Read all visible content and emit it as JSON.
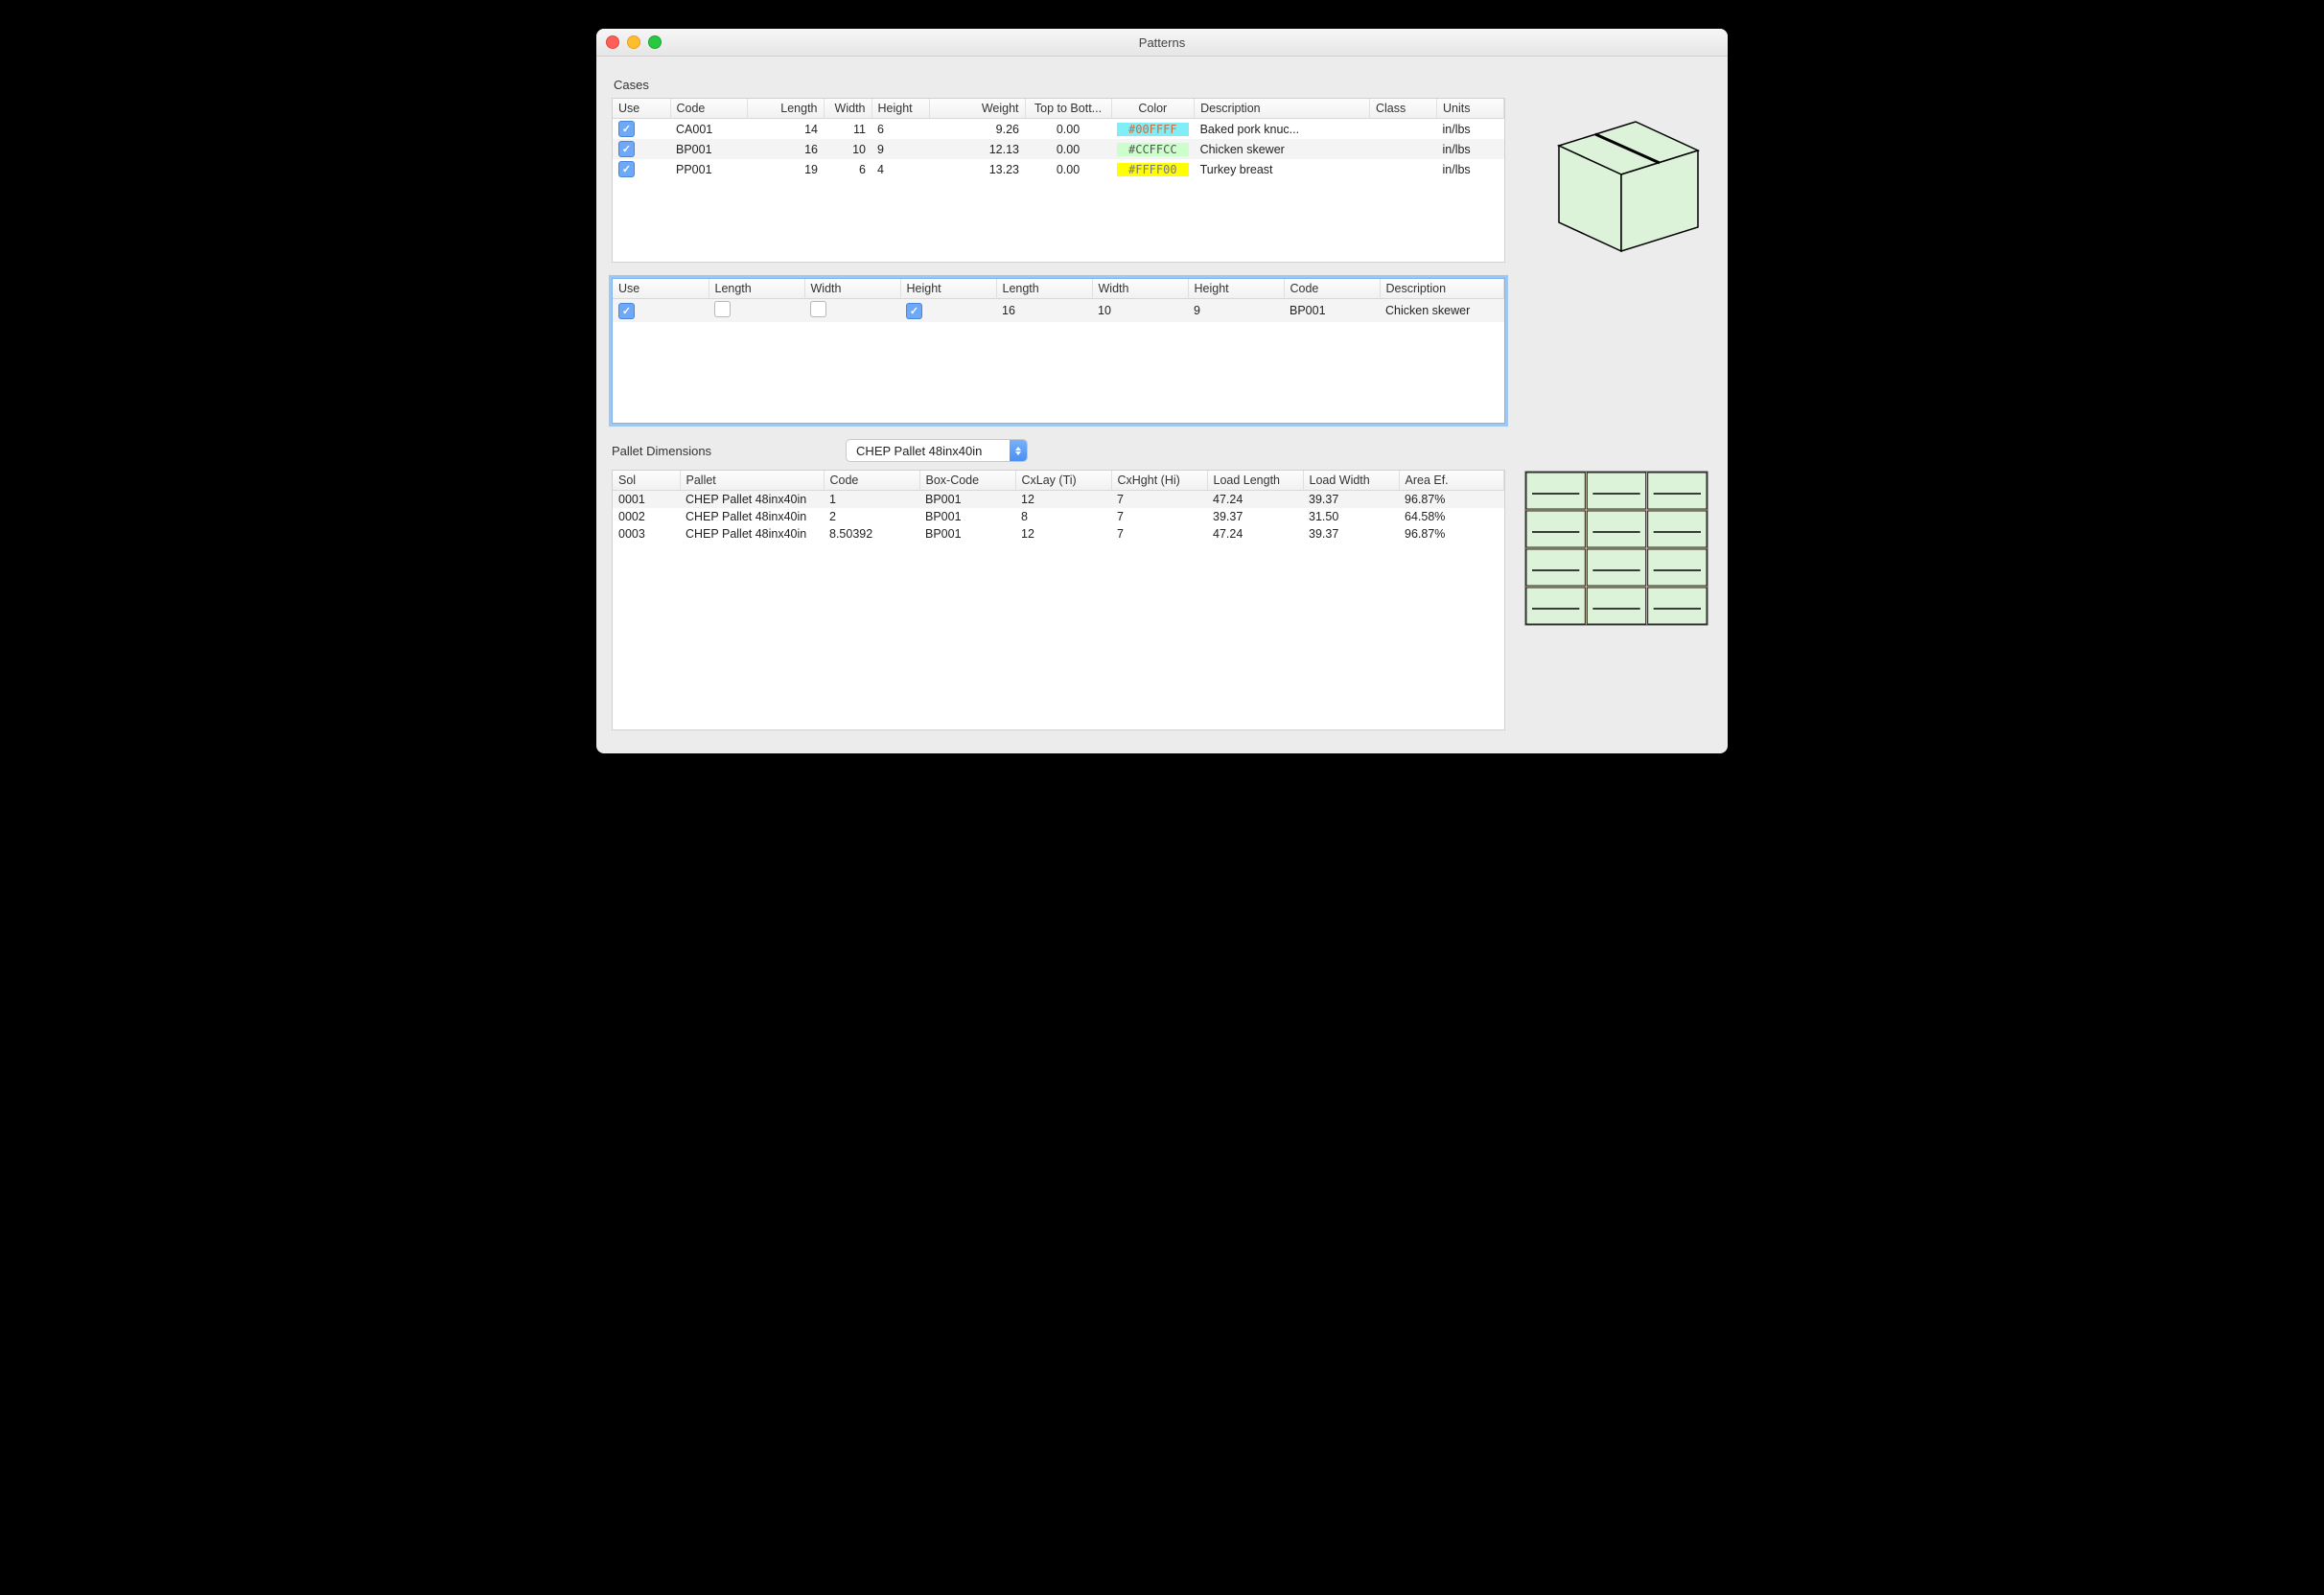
{
  "window": {
    "title": "Patterns"
  },
  "sections": {
    "cases_label": "Cases",
    "pallet_label": "Pallet Dimensions"
  },
  "cases_table": {
    "columns": [
      "Use",
      "Code",
      "Length",
      "Width",
      "Height",
      "Weight",
      "Top to Bott...",
      "Color",
      "Description",
      "Class",
      "Units"
    ],
    "rows": [
      {
        "use": true,
        "code": "CA001",
        "length": "14",
        "width": "11",
        "height": "6",
        "weight": "9.26",
        "ttb": "0.00",
        "color_hex": "#00FFFF",
        "color_bg": "#7feef7",
        "color_fg": "#d06b3c",
        "desc": "Baked pork knuc...",
        "class": "",
        "units": "in/lbs"
      },
      {
        "use": true,
        "code": "BP001",
        "length": "16",
        "width": "10",
        "height": "9",
        "weight": "12.13",
        "ttb": "0.00",
        "color_hex": "#CCFFCC",
        "color_bg": "#ccffcc",
        "color_fg": "#555",
        "desc": "Chicken skewer",
        "class": "",
        "units": "in/lbs"
      },
      {
        "use": true,
        "code": "PP001",
        "length": "19",
        "width": "6",
        "height": "4",
        "weight": "13.23",
        "ttb": "0.00",
        "color_hex": "#FFFF00",
        "color_bg": "#ffff00",
        "color_fg": "#777",
        "desc": "Turkey breast",
        "class": "",
        "units": "in/lbs"
      }
    ]
  },
  "detail_table": {
    "columns": [
      "Use",
      "Length",
      "Width",
      "Height",
      "Length",
      "Width",
      "Height",
      "Code",
      "Description"
    ],
    "row": {
      "use": true,
      "c2": false,
      "c3": false,
      "c4": true,
      "length": "16",
      "width": "10",
      "height": "9",
      "code": "BP001",
      "desc": "Chicken skewer"
    }
  },
  "pallet_select": {
    "value": "CHEP Pallet 48inx40in"
  },
  "results_table": {
    "columns": [
      "Sol",
      "Pallet",
      "Code",
      "Box-Code",
      "CxLay (Ti)",
      "CxHght (Hi)",
      "Load Length",
      "Load Width",
      "Area Ef."
    ],
    "rows": [
      {
        "sol": "0001",
        "pallet": "CHEP Pallet 48inx40in",
        "code": "1",
        "box": "BP001",
        "ti": "12",
        "hi": "7",
        "ll": "47.24",
        "lw": "39.37",
        "ae": "96.87%"
      },
      {
        "sol": "0002",
        "pallet": "CHEP Pallet 48inx40in",
        "code": "2",
        "box": "BP001",
        "ti": "8",
        "hi": "7",
        "ll": "39.37",
        "lw": "31.50",
        "ae": "64.58%"
      },
      {
        "sol": "0003",
        "pallet": "CHEP Pallet 48inx40in",
        "code": "8.50392",
        "box": "BP001",
        "ti": "12",
        "hi": "7",
        "ll": "47.24",
        "lw": "39.37",
        "ae": "96.87%"
      }
    ]
  },
  "box_preview": {
    "fill": "#dcf3d9",
    "stroke": "#000000"
  },
  "pallet_preview": {
    "cols": 3,
    "rows": 4,
    "box_fill": "#dcf3d9",
    "border": "#202020",
    "pallet_fill": "#d7c9a2"
  }
}
